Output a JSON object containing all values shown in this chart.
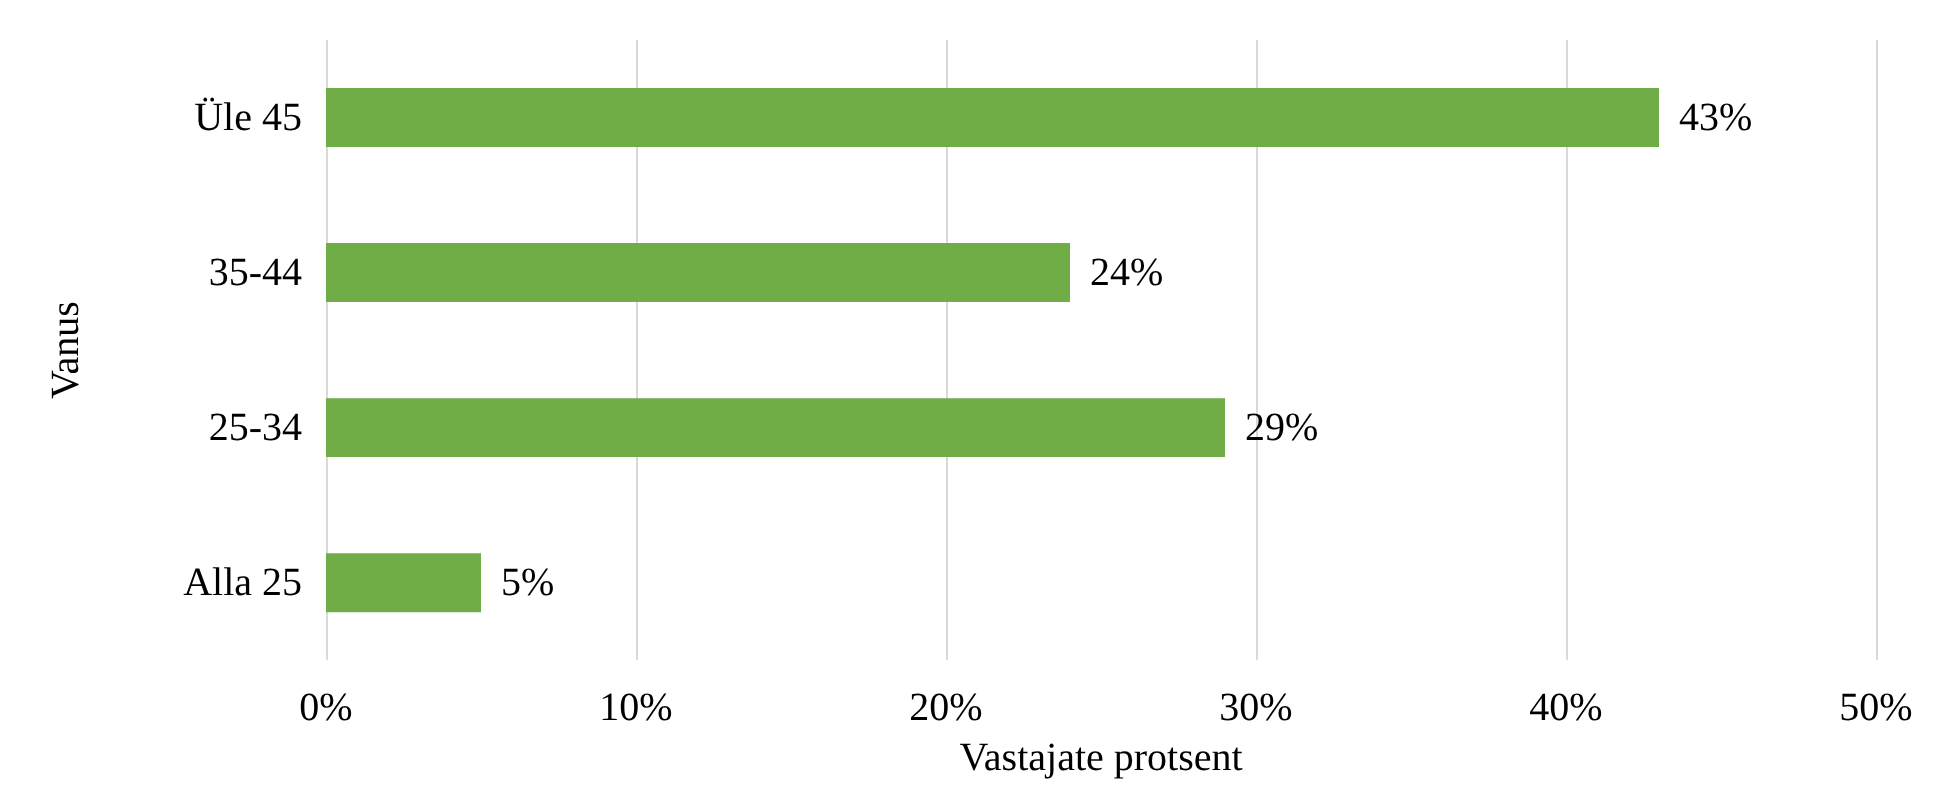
{
  "chart_data": {
    "type": "bar",
    "orientation": "horizontal",
    "xlabel": "Vastajate protsent",
    "ylabel": "Vanus",
    "categories": [
      "Üle 45",
      "35-44",
      "25-34",
      "Alla 25"
    ],
    "values": [
      43,
      24,
      29,
      5
    ],
    "value_labels": [
      "43%",
      "24%",
      "29%",
      "5%"
    ],
    "color": "#70ad47",
    "xlim": [
      0,
      50
    ],
    "xticks": [
      {
        "value": 0,
        "label": "0%"
      },
      {
        "value": 10,
        "label": "10%"
      },
      {
        "value": 20,
        "label": "20%"
      },
      {
        "value": 30,
        "label": "30%"
      },
      {
        "value": 40,
        "label": "40%"
      },
      {
        "value": 50,
        "label": "50%"
      }
    ],
    "grid": "x"
  }
}
